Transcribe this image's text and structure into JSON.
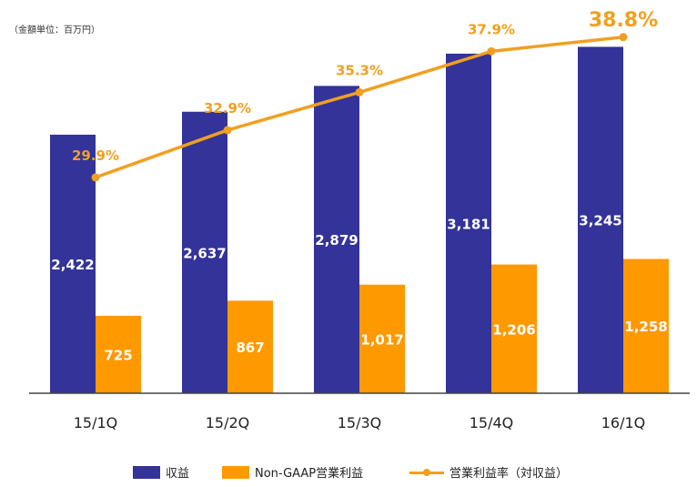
{
  "unit_note": "（金額単位：百万円）",
  "colors": {
    "revenue": "#333399",
    "profit": "#ff9900",
    "margin": "#f0a020",
    "axis": "#444444"
  },
  "chart_data": {
    "type": "bar",
    "categories": [
      "15/1Q",
      "15/2Q",
      "15/3Q",
      "15/4Q",
      "16/1Q"
    ],
    "series": [
      {
        "name": "収益",
        "kind": "bar",
        "values": [
          2422,
          2637,
          2879,
          3181,
          3245
        ],
        "labels": [
          "2,422",
          "2,637",
          "2,879",
          "3,181",
          "3,245"
        ]
      },
      {
        "name": "Non-GAAP営業利益",
        "kind": "bar",
        "values": [
          725,
          867,
          1017,
          1206,
          1258
        ],
        "labels": [
          "725",
          "867",
          "1,017",
          "1,206",
          "1,258"
        ]
      },
      {
        "name": "営業利益率（対収益）",
        "kind": "line",
        "values": [
          29.9,
          32.9,
          35.3,
          37.9,
          38.8
        ],
        "labels": [
          "29.9%",
          "32.9%",
          "35.3%",
          "37.9%",
          "38.8%"
        ]
      }
    ],
    "ylim": [
      0,
      3300
    ],
    "margin_ylim": [
      21,
      40
    ],
    "legend_position": "bottom"
  }
}
